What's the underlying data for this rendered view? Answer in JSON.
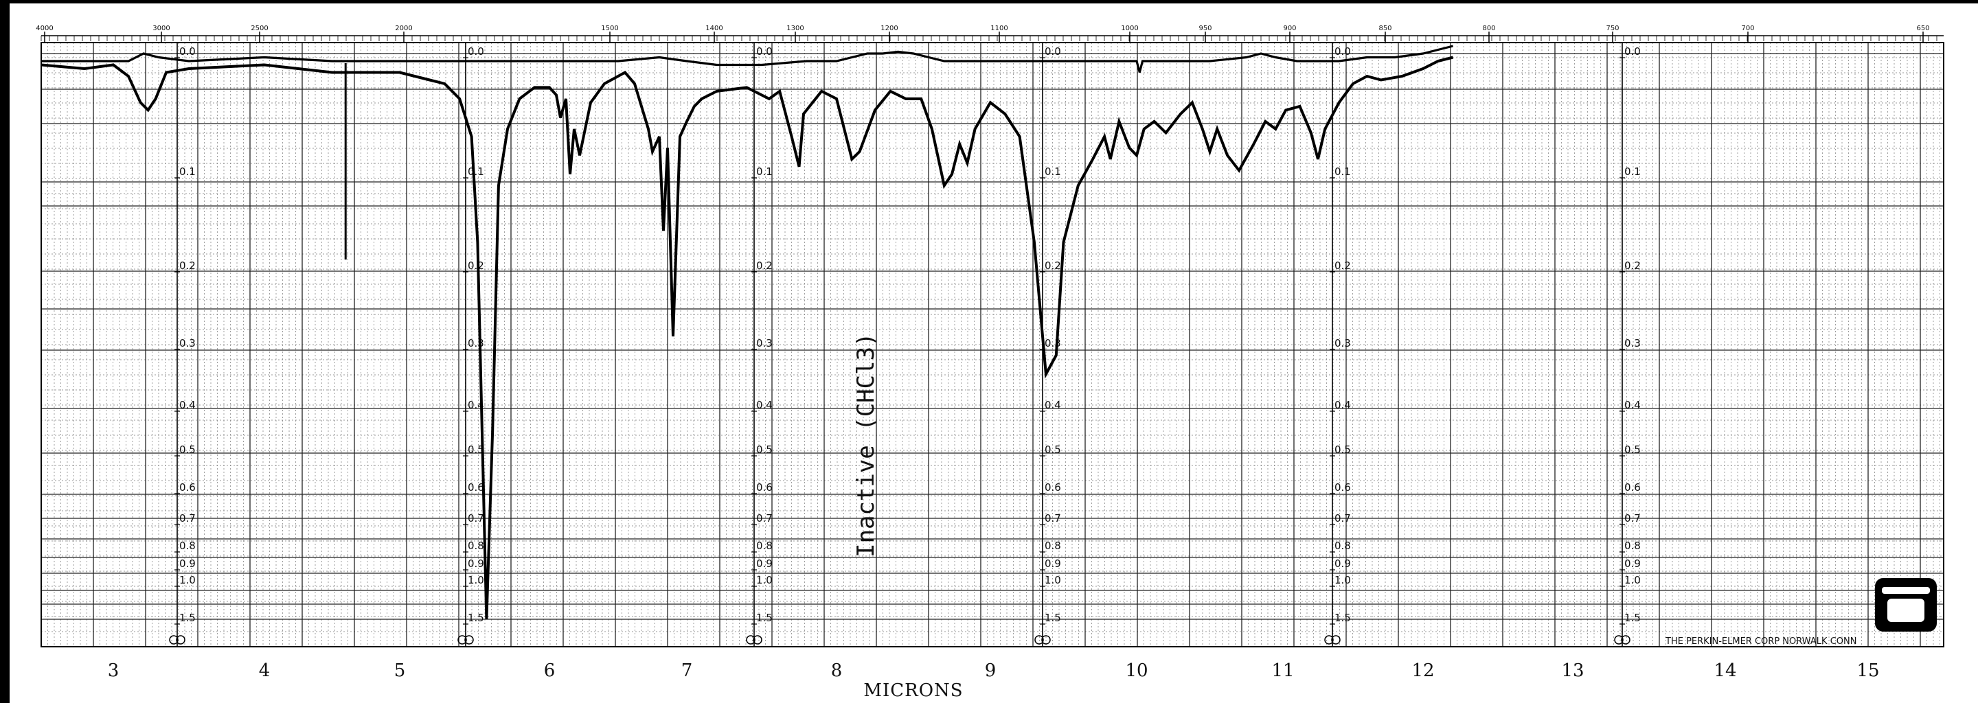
{
  "chart_data": {
    "type": "line",
    "xlabel": "MICRONS",
    "top_scale_ticks": [
      "4000",
      "3000",
      "2500",
      "2000",
      "1500",
      "1400",
      "1300",
      "1200",
      "1100",
      "1000",
      "950",
      "900",
      "850",
      "800",
      "750",
      "700",
      "650"
    ],
    "micron_ticks": [
      "3",
      "4",
      "5",
      "6",
      "7",
      "8",
      "9",
      "10",
      "11",
      "12",
      "13",
      "14",
      "15"
    ],
    "absorbance_scale_labels": [
      "0.0",
      "0.1",
      "0.2",
      "0.3",
      "0.4",
      "0.5",
      "0.6",
      "0.7",
      "0.8",
      "0.9",
      "1.0",
      "1.5"
    ],
    "annotation": "Inactive (CHCl3)",
    "manufacturer": "THE PERKIN-ELMER CORP  NORWALK  CONN",
    "series": [
      {
        "role": "sample",
        "points": [
          [
            2.5,
            0.03
          ],
          [
            2.8,
            0.04
          ],
          [
            3.0,
            0.03
          ],
          [
            3.1,
            0.06
          ],
          [
            3.18,
            0.13
          ],
          [
            3.23,
            0.15
          ],
          [
            3.28,
            0.12
          ],
          [
            3.35,
            0.05
          ],
          [
            3.5,
            0.04
          ],
          [
            4.0,
            0.03
          ],
          [
            4.5,
            0.05
          ],
          [
            5.0,
            0.05
          ],
          [
            5.2,
            0.07
          ],
          [
            5.3,
            0.08
          ],
          [
            5.4,
            0.12
          ],
          [
            5.48,
            0.22
          ],
          [
            5.52,
            0.5
          ],
          [
            5.55,
            1.0
          ],
          [
            5.58,
            1.5
          ],
          [
            5.62,
            1.0
          ],
          [
            5.66,
            0.35
          ],
          [
            5.72,
            0.2
          ],
          [
            5.8,
            0.12
          ],
          [
            5.9,
            0.09
          ],
          [
            6.0,
            0.09
          ],
          [
            6.05,
            0.11
          ],
          [
            6.08,
            0.17
          ],
          [
            6.12,
            0.12
          ],
          [
            6.15,
            0.32
          ],
          [
            6.18,
            0.2
          ],
          [
            6.22,
            0.27
          ],
          [
            6.26,
            0.2
          ],
          [
            6.3,
            0.13
          ],
          [
            6.4,
            0.08
          ],
          [
            6.55,
            0.05
          ],
          [
            6.62,
            0.08
          ],
          [
            6.72,
            0.2
          ],
          [
            6.75,
            0.26
          ],
          [
            6.8,
            0.22
          ],
          [
            6.83,
            0.47
          ],
          [
            6.86,
            0.25
          ],
          [
            6.9,
            0.75
          ],
          [
            6.95,
            0.22
          ],
          [
            7.0,
            0.18
          ],
          [
            7.05,
            0.14
          ],
          [
            7.1,
            0.12
          ],
          [
            7.2,
            0.1
          ],
          [
            7.4,
            0.09
          ],
          [
            7.55,
            0.12
          ],
          [
            7.62,
            0.1
          ],
          [
            7.7,
            0.22
          ],
          [
            7.75,
            0.3
          ],
          [
            7.78,
            0.16
          ],
          [
            7.9,
            0.1
          ],
          [
            8.0,
            0.12
          ],
          [
            8.05,
            0.2
          ],
          [
            8.1,
            0.28
          ],
          [
            8.15,
            0.26
          ],
          [
            8.25,
            0.15
          ],
          [
            8.35,
            0.1
          ],
          [
            8.45,
            0.12
          ],
          [
            8.55,
            0.12
          ],
          [
            8.62,
            0.2
          ],
          [
            8.7,
            0.35
          ],
          [
            8.75,
            0.32
          ],
          [
            8.8,
            0.24
          ],
          [
            8.85,
            0.29
          ],
          [
            8.9,
            0.2
          ],
          [
            9.0,
            0.13
          ],
          [
            9.1,
            0.16
          ],
          [
            9.2,
            0.22
          ],
          [
            9.3,
            0.5
          ],
          [
            9.38,
            0.85
          ],
          [
            9.45,
            0.8
          ],
          [
            9.5,
            0.5
          ],
          [
            9.6,
            0.35
          ],
          [
            9.7,
            0.28
          ],
          [
            9.78,
            0.22
          ],
          [
            9.82,
            0.28
          ],
          [
            9.88,
            0.18
          ],
          [
            9.95,
            0.25
          ],
          [
            10.0,
            0.27
          ],
          [
            10.05,
            0.2
          ],
          [
            10.12,
            0.18
          ],
          [
            10.2,
            0.21
          ],
          [
            10.3,
            0.16
          ],
          [
            10.38,
            0.13
          ],
          [
            10.45,
            0.2
          ],
          [
            10.5,
            0.26
          ],
          [
            10.55,
            0.2
          ],
          [
            10.62,
            0.27
          ],
          [
            10.7,
            0.31
          ],
          [
            10.8,
            0.24
          ],
          [
            10.88,
            0.18
          ],
          [
            10.95,
            0.2
          ],
          [
            11.02,
            0.15
          ],
          [
            11.12,
            0.14
          ],
          [
            11.2,
            0.21
          ],
          [
            11.25,
            0.28
          ],
          [
            11.3,
            0.2
          ],
          [
            11.4,
            0.13
          ],
          [
            11.5,
            0.08
          ],
          [
            11.6,
            0.06
          ],
          [
            11.7,
            0.07
          ],
          [
            11.85,
            0.06
          ],
          [
            12.0,
            0.04
          ],
          [
            12.1,
            0.02
          ],
          [
            12.2,
            0.01
          ]
        ]
      },
      {
        "role": "reference",
        "points": [
          [
            2.5,
            0.02
          ],
          [
            3.0,
            0.02
          ],
          [
            3.1,
            0.02
          ],
          [
            3.2,
            0.0
          ],
          [
            3.3,
            0.01
          ],
          [
            3.5,
            0.02
          ],
          [
            4.0,
            0.01
          ],
          [
            4.5,
            0.02
          ],
          [
            5.0,
            0.02
          ],
          [
            5.5,
            0.02
          ],
          [
            6.0,
            0.02
          ],
          [
            6.5,
            0.02
          ],
          [
            6.8,
            0.01
          ],
          [
            7.0,
            0.02
          ],
          [
            7.2,
            0.03
          ],
          [
            7.5,
            0.03
          ],
          [
            7.8,
            0.02
          ],
          [
            8.0,
            0.02
          ],
          [
            8.1,
            0.01
          ],
          [
            8.2,
            0.0
          ],
          [
            8.3,
            0.0
          ],
          [
            8.4,
            -0.005
          ],
          [
            8.5,
            0.0
          ],
          [
            8.6,
            0.01
          ],
          [
            8.7,
            0.02
          ],
          [
            9.0,
            0.02
          ],
          [
            9.5,
            0.02
          ],
          [
            9.8,
            0.02
          ],
          [
            10.0,
            0.02
          ],
          [
            10.02,
            0.05
          ],
          [
            10.04,
            0.02
          ],
          [
            10.5,
            0.02
          ],
          [
            10.75,
            0.01
          ],
          [
            10.85,
            0.0
          ],
          [
            10.95,
            0.01
          ],
          [
            11.1,
            0.02
          ],
          [
            11.4,
            0.02
          ],
          [
            11.6,
            0.01
          ],
          [
            11.8,
            0.01
          ],
          [
            12.0,
            0.0
          ],
          [
            12.1,
            -0.01
          ],
          [
            12.2,
            -0.02
          ]
        ]
      }
    ]
  }
}
